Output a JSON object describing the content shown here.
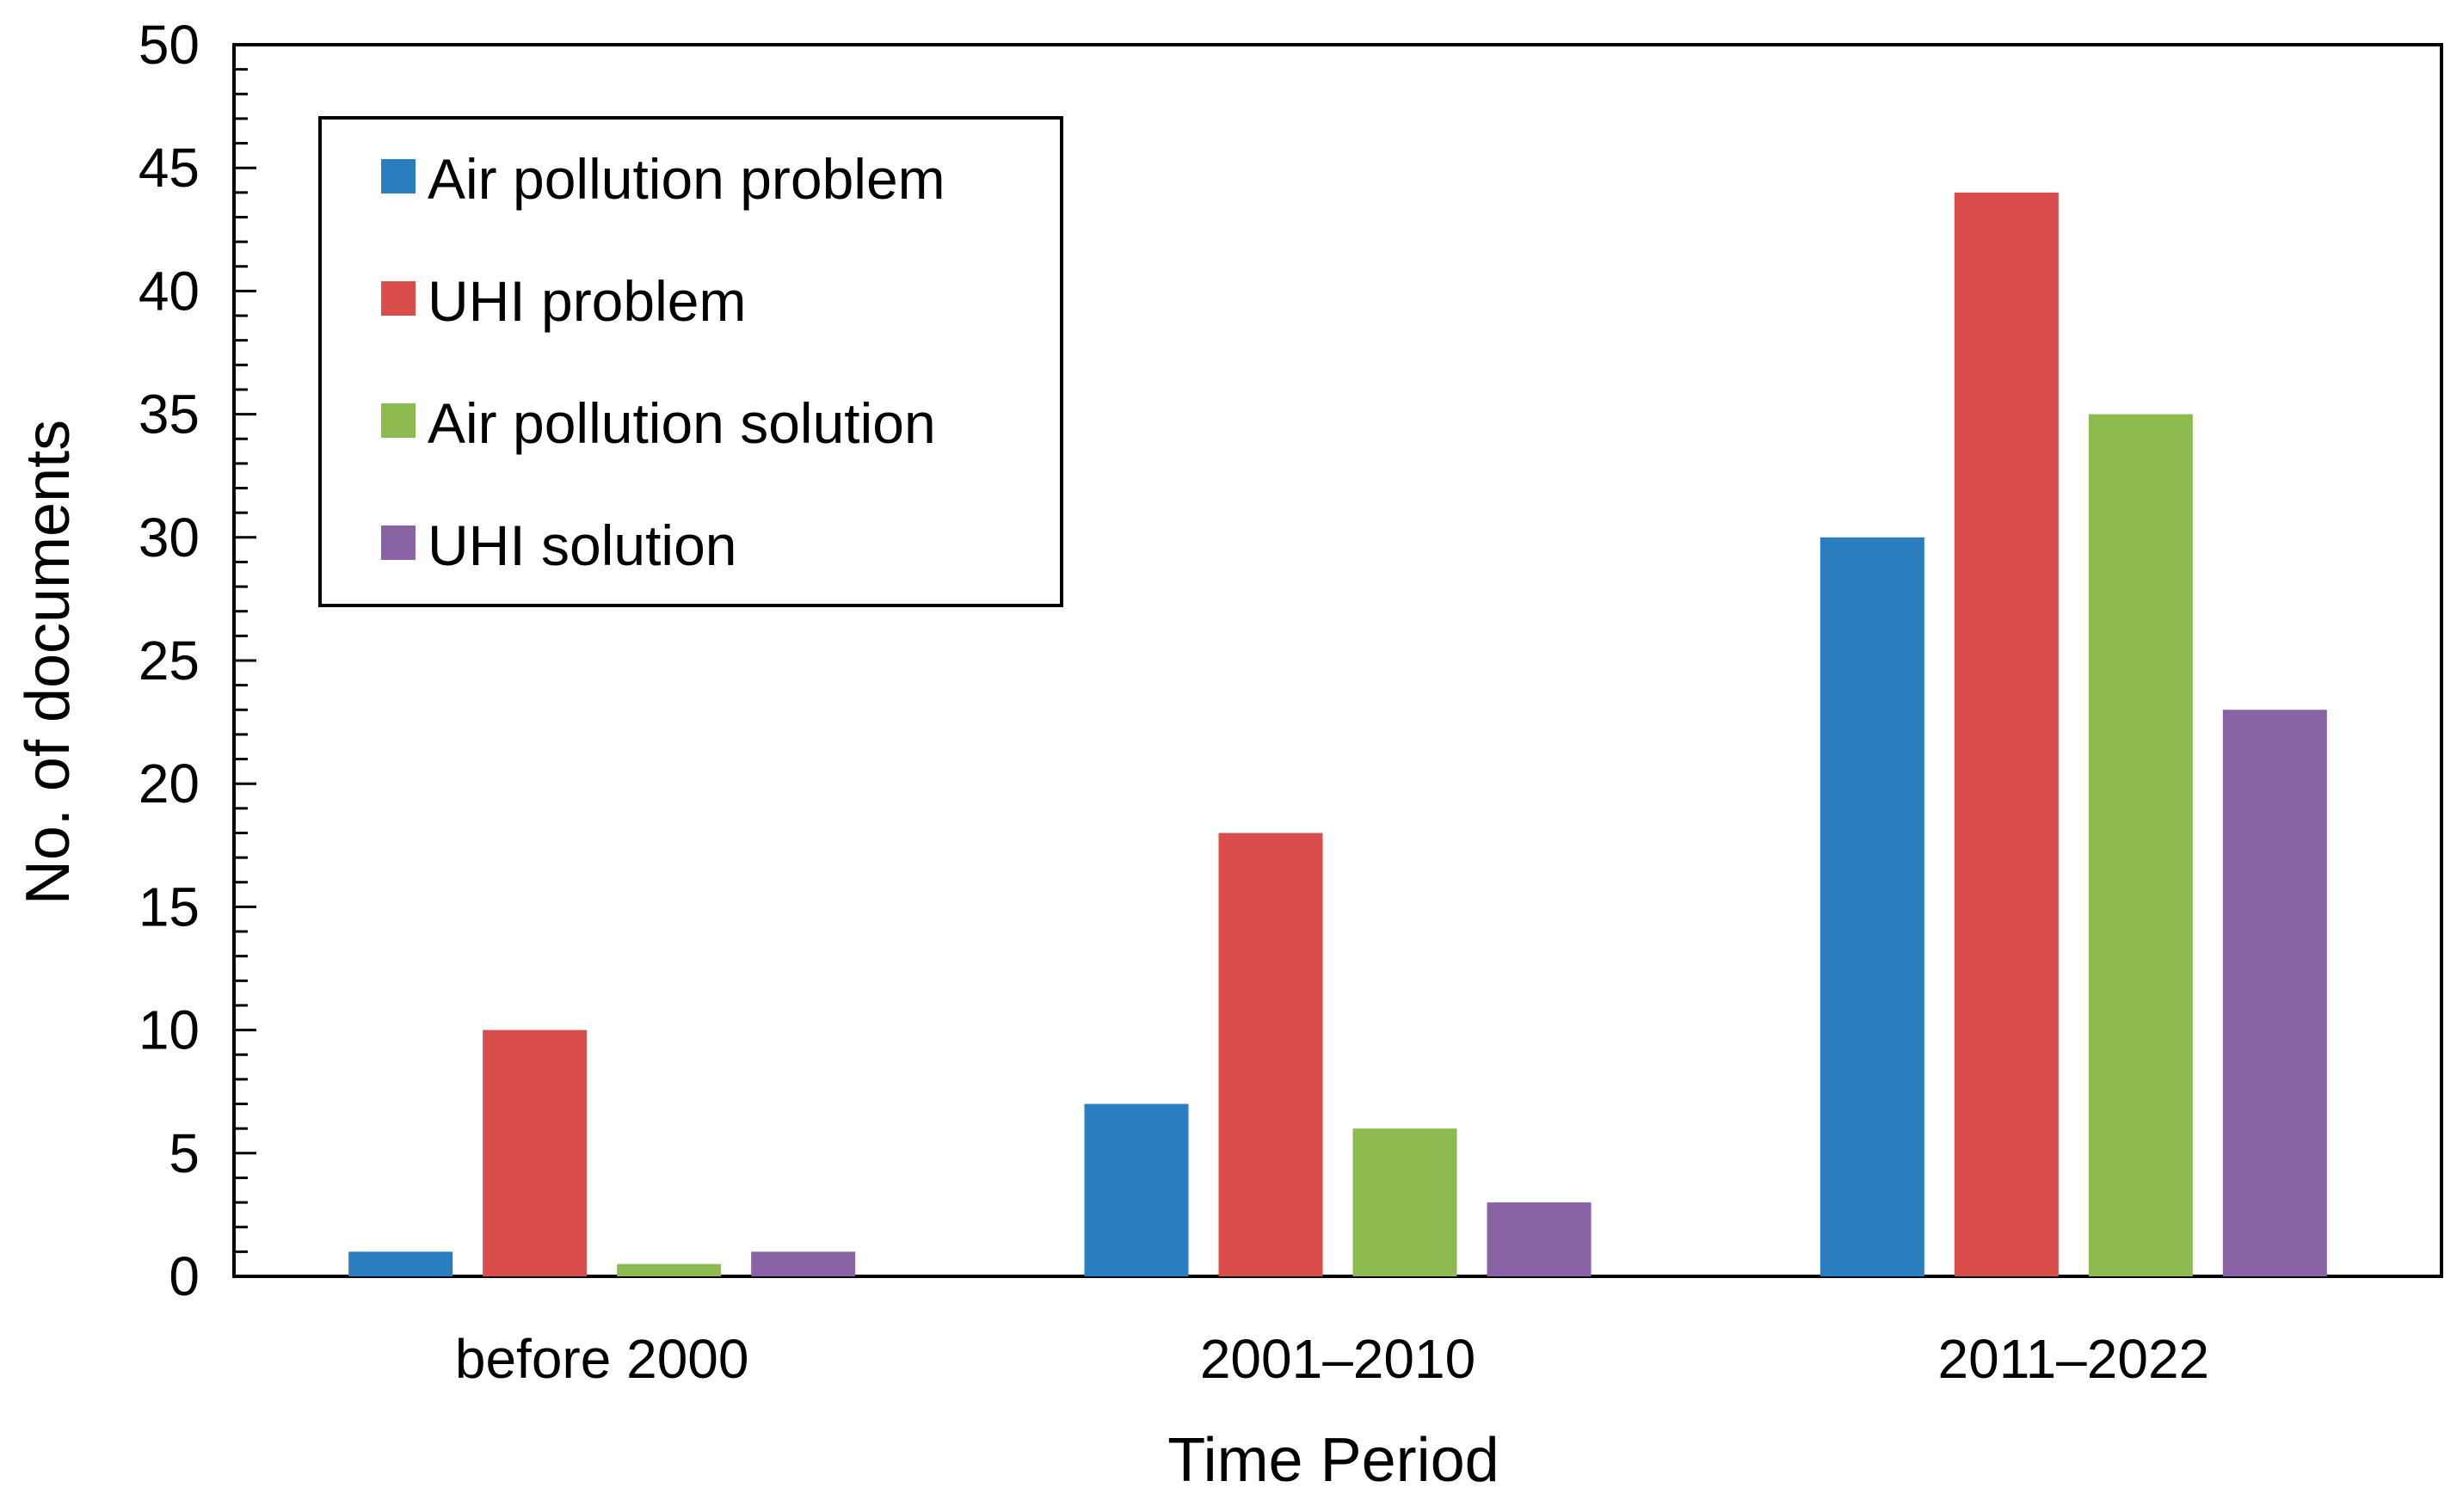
{
  "chart_data": {
    "type": "bar",
    "title": "",
    "xlabel": "Time Period",
    "ylabel": "No. of documents",
    "categories": [
      "before 2000",
      "2001–2010",
      "2011–2022"
    ],
    "series": [
      {
        "name": "Air pollution problem",
        "color": "#2A7EC0",
        "values": [
          1,
          7,
          30
        ]
      },
      {
        "name": "UHI problem",
        "color": "#DA4D4D",
        "values": [
          10,
          18,
          44
        ]
      },
      {
        "name": "Air pollution solution",
        "color": "#8DBB50",
        "values": [
          0.5,
          6,
          35
        ]
      },
      {
        "name": "UHI solution",
        "color": "#8A62A6",
        "values": [
          1,
          3,
          23
        ]
      }
    ],
    "ylim": [
      0,
      50
    ],
    "yticks": [
      0,
      5,
      10,
      15,
      20,
      25,
      30,
      35,
      40,
      45,
      50
    ],
    "yticks_labels": [
      "0",
      "5",
      "10",
      "15",
      "20",
      "25",
      "30",
      "35",
      "40",
      "45",
      "50"
    ],
    "minor_tick_step": 1,
    "grid": false,
    "legend_position": "top-left"
  }
}
